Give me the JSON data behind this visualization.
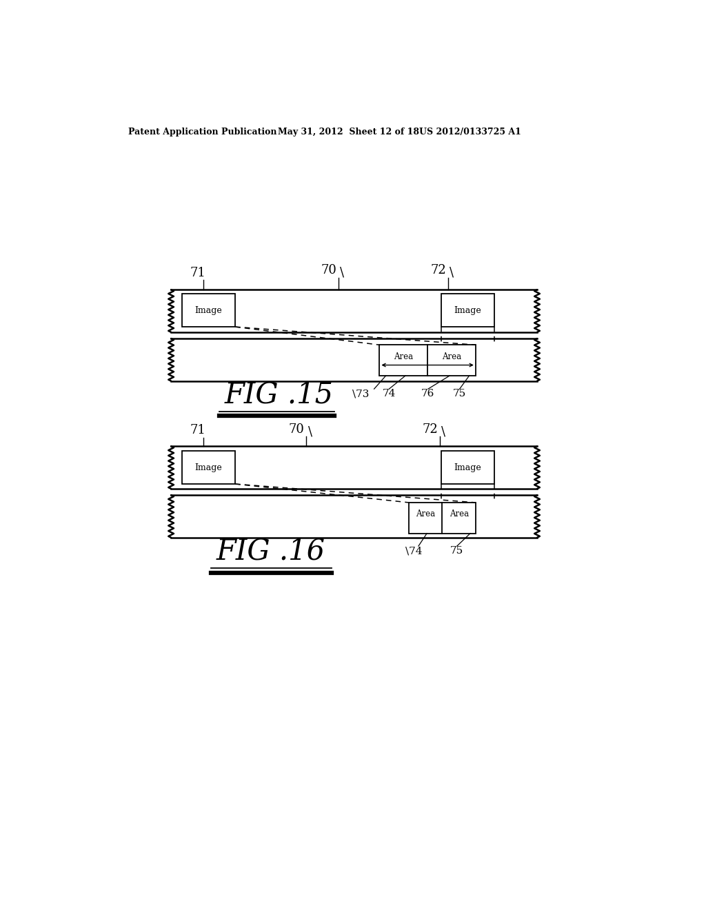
{
  "header_left": "Patent Application Publication",
  "header_mid": "May 31, 2012  Sheet 12 of 18",
  "header_right": "US 2012/0133725 A1",
  "fig15_label": "F I G . 1 5",
  "fig16_label": "F I G . 1 6",
  "bg_color": "#ffffff",
  "tape_color": "#ffffff",
  "tape_border_color": "#000000",
  "text_color": "#000000"
}
